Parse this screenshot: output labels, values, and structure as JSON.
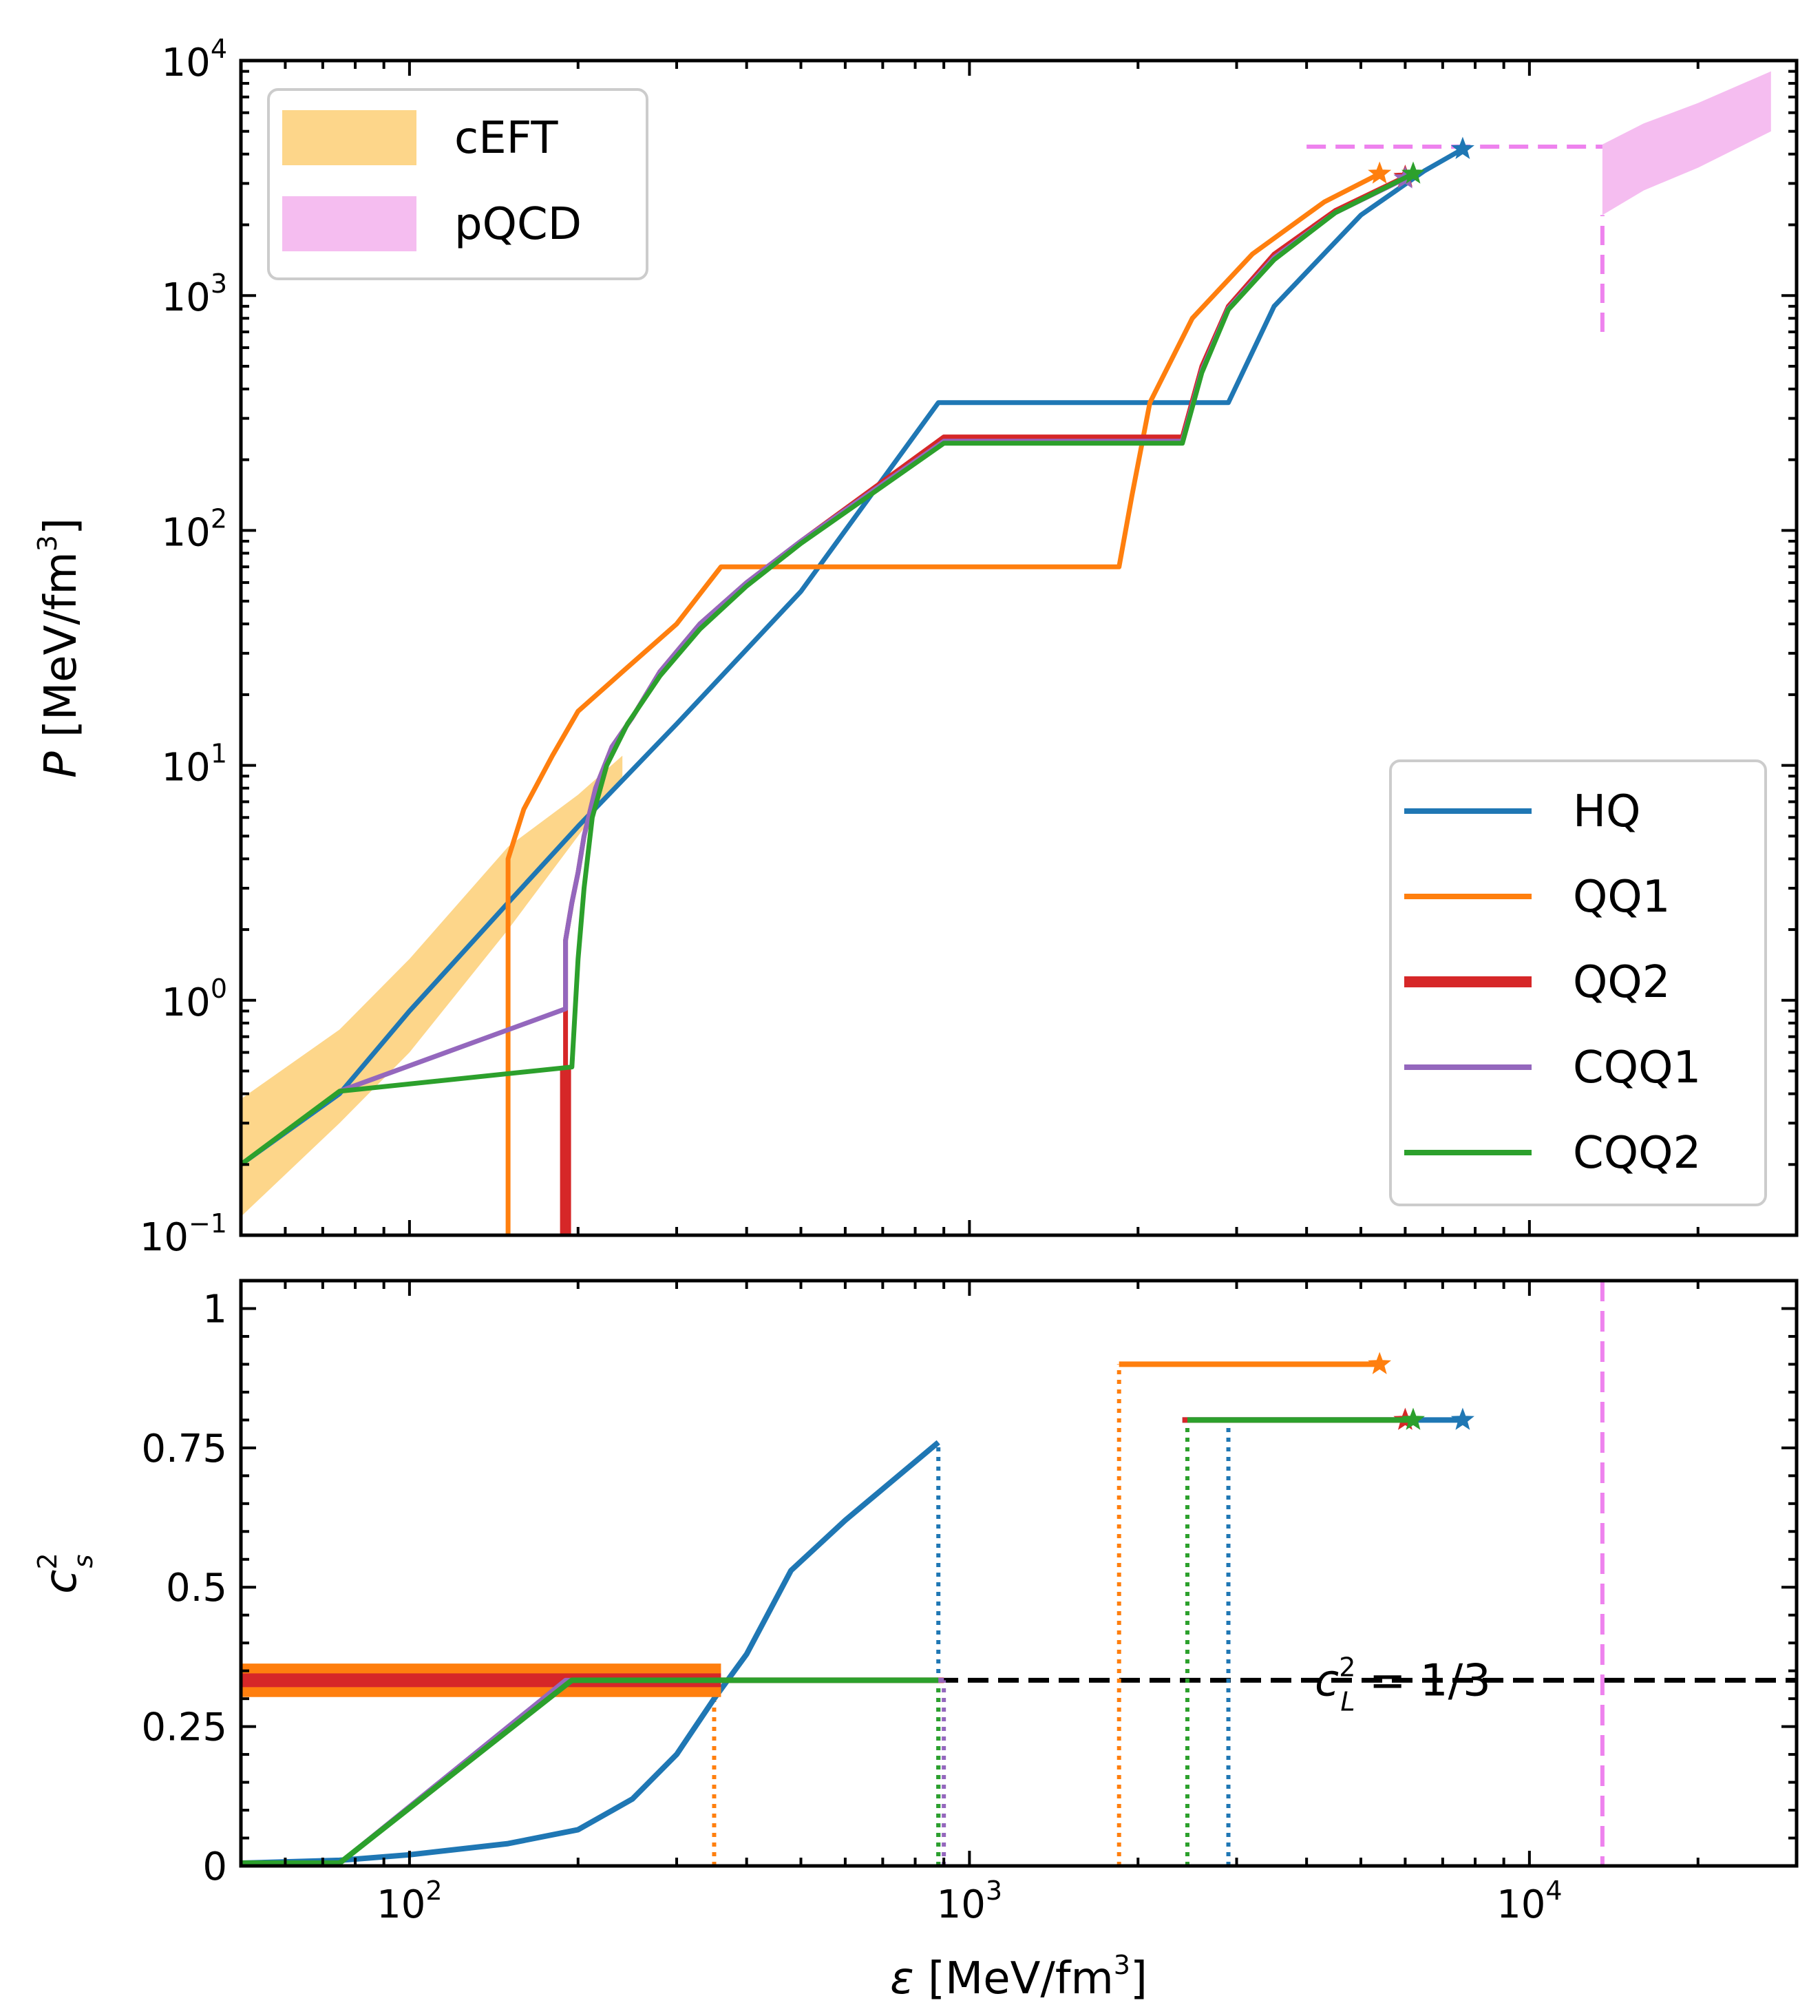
{
  "colors": {
    "HQ": "#1f77b4",
    "QQ1": "#ff7f0e",
    "QQ2": "#d62728",
    "CQQ1": "#9467bd",
    "CQQ2": "#2ca02c",
    "cEFT": "#fdd68a",
    "pQCD": "#f5bdf0",
    "pQCD_line": "#ee82ee",
    "conformal": "#000000"
  },
  "chart_data": [
    {
      "id": "pressure",
      "type": "line",
      "xscale": "log",
      "yscale": "log",
      "xlim": [
        50,
        30000
      ],
      "ylim": [
        0.1,
        10000
      ],
      "xlabel": "ε [MeV/fm3]",
      "ylabel": "P [MeV/fm3]",
      "x_ticks": [
        "10^2",
        "10^3",
        "10^4"
      ],
      "y_ticks": [
        "10^-1",
        "10^0",
        "10^1",
        "10^2",
        "10^3",
        "10^4"
      ],
      "legend_bands": [
        {
          "name": "cEFT",
          "color_key": "cEFT"
        },
        {
          "name": "pQCD",
          "color_key": "pQCD"
        }
      ],
      "legend_lines": [
        {
          "name": "HQ",
          "color_key": "HQ",
          "width": "normal"
        },
        {
          "name": "QQ1",
          "color_key": "QQ1",
          "width": "normal"
        },
        {
          "name": "QQ2",
          "color_key": "QQ2",
          "width": "thick"
        },
        {
          "name": "CQQ1",
          "color_key": "CQQ1",
          "width": "normal"
        },
        {
          "name": "CQQ2",
          "color_key": "CQQ2",
          "width": "normal"
        }
      ],
      "cEFT_band": {
        "x": [
          50,
          75,
          100,
          150,
          200,
          240
        ],
        "lower": [
          0.12,
          0.3,
          0.6,
          2.0,
          5.0,
          9.0
        ],
        "upper": [
          0.38,
          0.75,
          1.5,
          4.5,
          7.5,
          11.0
        ]
      },
      "pQCD_band": {
        "x": [
          13500,
          16000,
          20000,
          27000
        ],
        "lower": [
          2200,
          2800,
          3500,
          5000
        ],
        "upper": [
          4400,
          5400,
          6600,
          9000
        ]
      },
      "pQCD_lines": {
        "horizontal": {
          "x": [
            4000,
            13500
          ],
          "y": 4300
        },
        "vertical": {
          "x": 13500,
          "y": [
            700,
            2200
          ]
        }
      },
      "series": [
        {
          "name": "HQ",
          "color_key": "HQ",
          "width": 7,
          "x": [
            50,
            75,
            100,
            150,
            200,
            300,
            500,
            880,
            1500,
            2900,
            3500,
            5000,
            6500,
            7600
          ],
          "y": [
            0.2,
            0.4,
            0.9,
            2.6,
            5.5,
            15,
            55,
            350,
            350,
            350,
            900,
            2200,
            3400,
            4200
          ],
          "end_marker": "star"
        },
        {
          "name": "QQ1",
          "color_key": "QQ1",
          "width": 7,
          "x": [
            150,
            150,
            160,
            180,
            200,
            240,
            300,
            360,
            1000,
            1850,
            1950,
            2100,
            2500,
            3200,
            4300,
            5400
          ],
          "y": [
            0.1,
            4.0,
            6.5,
            11,
            17,
            25,
            40,
            70,
            70,
            70,
            140,
            350,
            800,
            1500,
            2500,
            3300
          ],
          "end_marker": "star"
        },
        {
          "name": "QQ2",
          "color_key": "QQ2",
          "width": 16,
          "x": [
            190,
            190
          ],
          "y": [
            0.1,
            0.52
          ]
        },
        {
          "name": "QQ2-upper",
          "color_key": "QQ2",
          "width": 7,
          "x": [
            190,
            190,
            195,
            200,
            205,
            215,
            230,
            250,
            280,
            330,
            400,
            500,
            900,
            2400,
            2600,
            2900,
            3500,
            4500,
            6000
          ],
          "y": [
            0.52,
            1.8,
            2.6,
            3.5,
            5.0,
            8.0,
            12,
            16,
            25,
            40,
            60,
            90,
            250,
            250,
            500,
            900,
            1500,
            2300,
            3200
          ],
          "end_marker": "star"
        },
        {
          "name": "CQQ1",
          "color_key": "CQQ1",
          "width": 7,
          "x": [
            75,
            190,
            190,
            195,
            200,
            205,
            215,
            230,
            250,
            280,
            330,
            400,
            500,
            900,
            2400,
            2600,
            2900,
            3500,
            4500,
            6000
          ],
          "y": [
            0.41,
            0.92,
            1.8,
            2.6,
            3.5,
            5.0,
            8.0,
            12,
            16,
            25,
            40,
            60,
            90,
            240,
            240,
            480,
            880,
            1450,
            2250,
            3150
          ],
          "end_marker": "star"
        },
        {
          "name": "CQQ2",
          "color_key": "CQQ2",
          "width": 7,
          "x": [
            50,
            75,
            195,
            195,
            200,
            205,
            212,
            225,
            245,
            280,
            330,
            400,
            500,
            900,
            2400,
            2600,
            2900,
            3500,
            4500,
            6200
          ],
          "y": [
            0.2,
            0.41,
            0.52,
            0.52,
            1.5,
            3.0,
            6.0,
            10,
            15,
            24,
            38,
            58,
            88,
            235,
            235,
            470,
            870,
            1420,
            2250,
            3300
          ],
          "end_marker": "star"
        }
      ]
    },
    {
      "id": "sound_speed",
      "type": "line",
      "xscale": "log",
      "xlim": [
        50,
        30000
      ],
      "ylim": [
        0,
        1.05
      ],
      "xlabel": "ε [MeV/fm3]",
      "ylabel": "c_s^2",
      "x_ticks": [
        "10^2",
        "10^3",
        "10^4"
      ],
      "y_ticks": [
        "0",
        "0.25",
        "0.5",
        "0.75",
        "1"
      ],
      "annotation": {
        "text_base": "c",
        "text_sup": "2",
        "text_sub": "L",
        "text_rest": " = 1/3",
        "y": 0.333
      },
      "pQCD_vline": {
        "x": 13500
      },
      "series": [
        {
          "name": "HQ",
          "color_key": "HQ",
          "width": 8,
          "x": [
            50,
            75,
            100,
            150,
            200,
            250,
            300,
            350,
            400,
            480,
            600,
            880
          ],
          "y": [
            0.005,
            0.01,
            0.02,
            0.04,
            0.065,
            0.12,
            0.2,
            0.3,
            0.38,
            0.53,
            0.62,
            0.76
          ],
          "end_marker": "none"
        },
        {
          "name": "HQ-upper",
          "color_key": "HQ",
          "width": 8,
          "x": [
            2400,
            7600
          ],
          "y": [
            0.8,
            0.8
          ],
          "end_marker": "star"
        },
        {
          "name": "QQ1",
          "color_key": "QQ1",
          "width": 8,
          "x": [
            50,
            360
          ],
          "y": [
            0.333,
            0.333
          ],
          "end_marker": "none",
          "band": 0.03
        },
        {
          "name": "QQ1-upper",
          "color_key": "QQ1",
          "width": 8,
          "x": [
            1850,
            5400
          ],
          "y": [
            0.9,
            0.9
          ],
          "end_marker": "star"
        },
        {
          "name": "QQ2",
          "color_key": "QQ2",
          "width": 20,
          "x": [
            50,
            360
          ],
          "y": [
            0.333,
            0.333
          ],
          "end_marker": "none"
        },
        {
          "name": "QQ2-mid",
          "color_key": "QQ2",
          "width": 8,
          "x": [
            190,
            900
          ],
          "y": [
            0.333,
            0.333
          ],
          "end_marker": "none"
        },
        {
          "name": "QQ2-upper",
          "color_key": "QQ2",
          "width": 8,
          "x": [
            2400,
            6000
          ],
          "y": [
            0.8,
            0.8
          ],
          "end_marker": "star"
        },
        {
          "name": "CQQ1",
          "color_key": "CQQ1",
          "width": 7,
          "x": [
            50,
            75,
            190,
            900
          ],
          "y": [
            0.005,
            0.005,
            0.333,
            0.333
          ],
          "end_marker": "none"
        },
        {
          "name": "CQQ2",
          "color_key": "CQQ2",
          "width": 8,
          "x": [
            50,
            75,
            195,
            880
          ],
          "y": [
            0.005,
            0.005,
            0.333,
            0.333
          ],
          "end_marker": "none"
        },
        {
          "name": "CQQ2-upper",
          "color_key": "CQQ2",
          "width": 8,
          "x": [
            2450,
            6200
          ],
          "y": [
            0.8,
            0.8
          ],
          "end_marker": "star"
        }
      ],
      "dotted_lines": [
        {
          "color_key": "QQ1",
          "x": 350,
          "y": [
            0,
            0.333
          ]
        },
        {
          "color_key": "QQ1",
          "x": 1850,
          "y": [
            0,
            0.9
          ]
        },
        {
          "color_key": "HQ",
          "x": 880,
          "y": [
            0,
            0.76
          ]
        },
        {
          "color_key": "HQ",
          "x": 2900,
          "y": [
            0,
            0.8
          ]
        },
        {
          "color_key": "CQQ1",
          "x": 900,
          "y": [
            0,
            0.333
          ]
        },
        {
          "color_key": "CQQ2",
          "x": 880,
          "y": [
            0,
            0.333
          ]
        },
        {
          "color_key": "CQQ2",
          "x": 2450,
          "y": [
            0,
            0.8
          ]
        }
      ]
    }
  ]
}
